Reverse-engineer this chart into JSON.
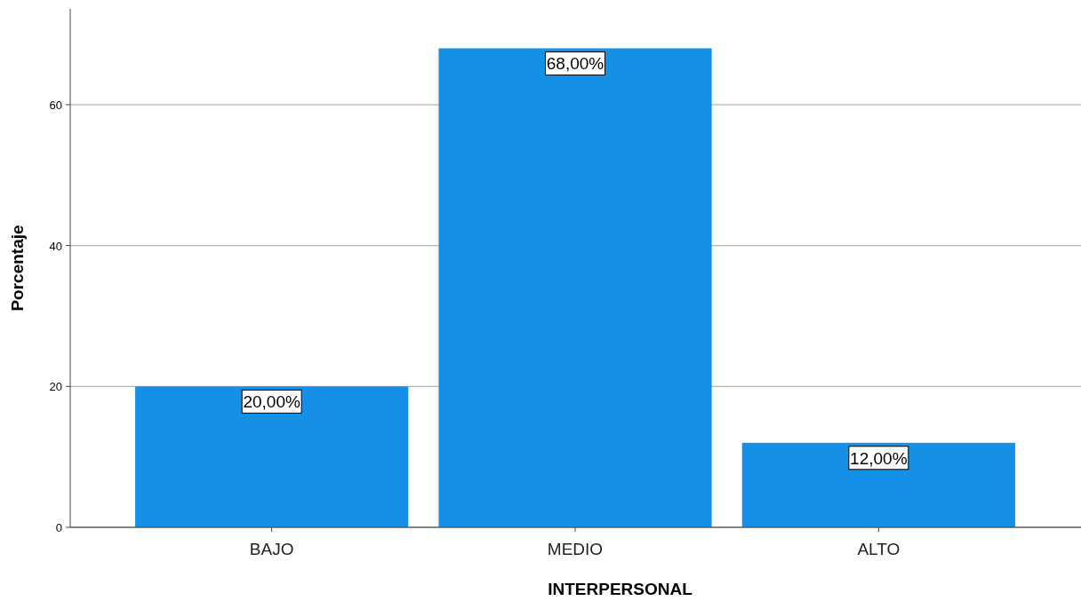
{
  "chart_data": {
    "type": "bar",
    "xlabel": "INTERPERSONAL",
    "ylabel": "Porcentaje",
    "categories": [
      "BAJO",
      "MEDIO",
      "ALTO"
    ],
    "values": [
      20,
      68,
      12
    ],
    "color": "#1491e6",
    "value_labels": [
      "20,00%",
      "68,00%",
      "12,00%"
    ],
    "ylim": [
      0,
      73.6
    ],
    "yticks": [
      0,
      20,
      40,
      60
    ],
    "grid": "y"
  }
}
